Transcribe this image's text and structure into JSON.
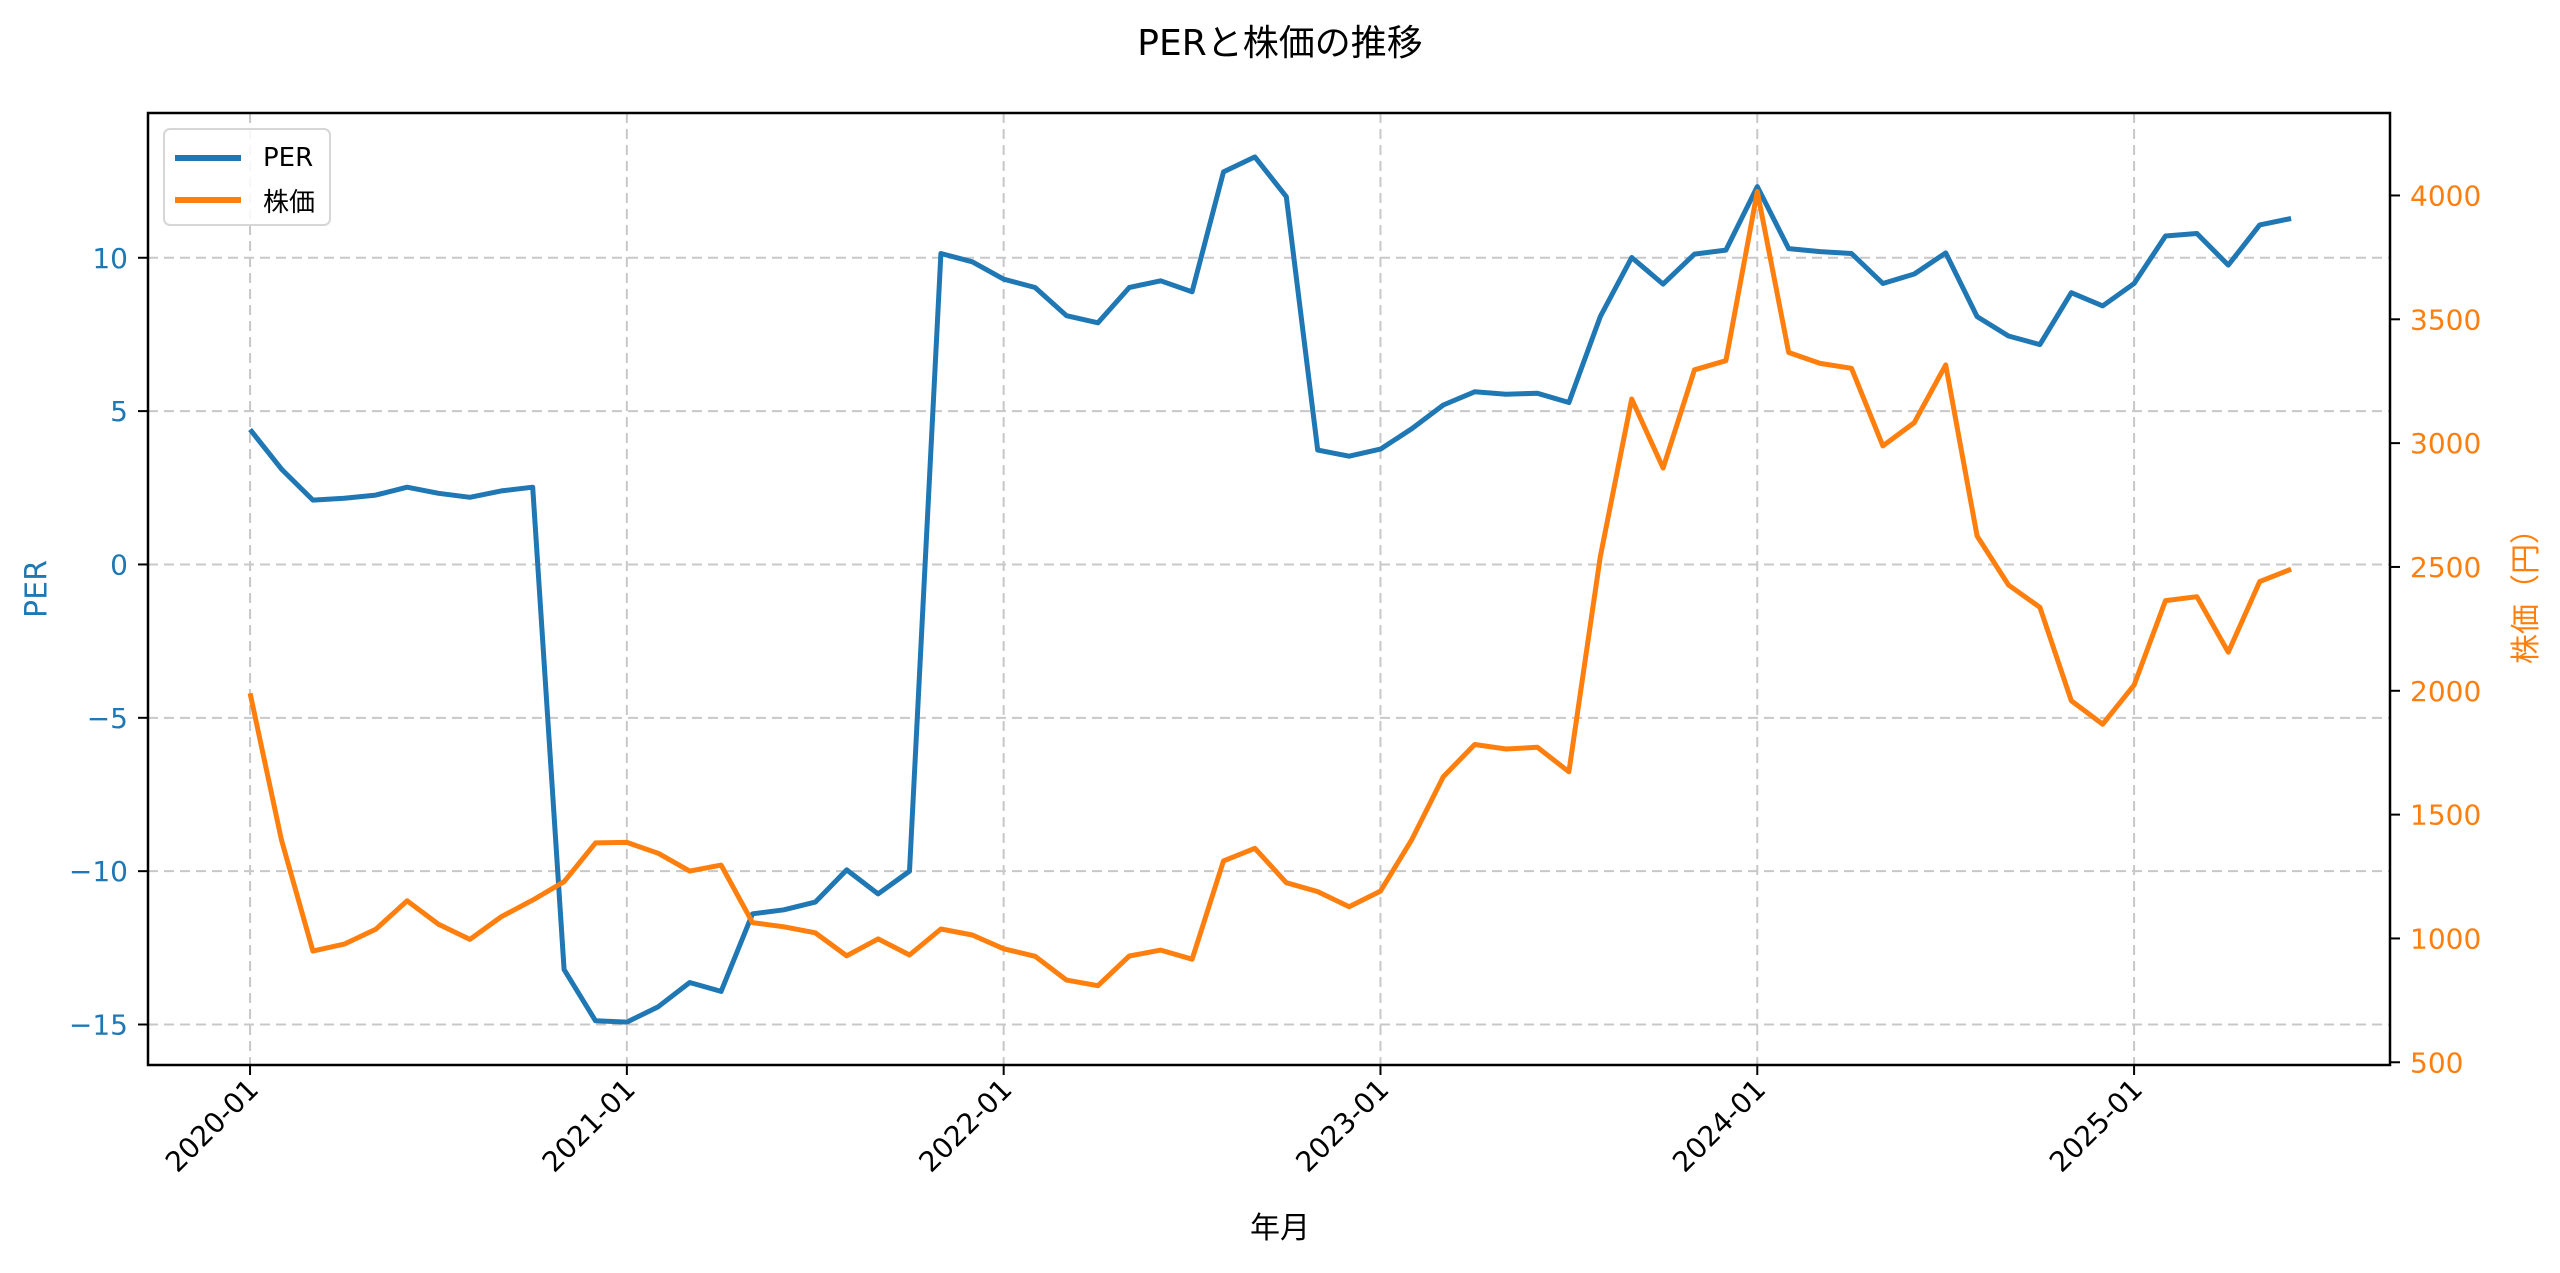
{
  "title": "PERと株価の推移",
  "xlabel": "年月",
  "ylabel_left": "PER",
  "ylabel_right": "株価（円）",
  "colors": {
    "per": "#1f77b4",
    "price": "#ff7f0e",
    "grid": "#c8c8c8",
    "axis": "#000000"
  },
  "legend": [
    {
      "label": "PER",
      "color": "#1f77b4"
    },
    {
      "label": "株価",
      "color": "#ff7f0e"
    }
  ],
  "chart_data": {
    "type": "line",
    "title": "PERと株価の推移",
    "xlabel": "年月",
    "ylabel": "PER",
    "ylabel_secondary": "株価（円）",
    "grid": true,
    "legend_position": "upper left",
    "x": [
      "2020-01",
      "2020-02",
      "2020-03",
      "2020-04",
      "2020-05",
      "2020-06",
      "2020-07",
      "2020-08",
      "2020-09",
      "2020-10",
      "2020-11",
      "2020-12",
      "2021-01",
      "2021-02",
      "2021-03",
      "2021-04",
      "2021-05",
      "2021-06",
      "2021-07",
      "2021-08",
      "2021-09",
      "2021-10",
      "2021-11",
      "2021-12",
      "2022-01",
      "2022-02",
      "2022-03",
      "2022-04",
      "2022-05",
      "2022-06",
      "2022-07",
      "2022-08",
      "2022-09",
      "2022-10",
      "2022-11",
      "2022-12",
      "2023-01",
      "2023-02",
      "2023-03",
      "2023-04",
      "2023-05",
      "2023-06",
      "2023-07",
      "2023-08",
      "2023-09",
      "2023-10",
      "2023-11",
      "2023-12",
      "2024-01",
      "2024-02",
      "2024-03",
      "2024-04",
      "2024-05",
      "2024-06",
      "2024-07",
      "2024-08",
      "2024-09",
      "2024-10",
      "2024-11",
      "2024-12",
      "2025-01",
      "2025-02",
      "2025-03",
      "2025-04",
      "2025-05",
      "2025-06"
    ],
    "xticks": [
      "2020-01",
      "2021-01",
      "2022-01",
      "2023-01",
      "2024-01",
      "2025-01"
    ],
    "xlim_index": [
      -3.25,
      68.15
    ],
    "series": [
      {
        "name": "PER",
        "axis": "left",
        "color": "#1f77b4",
        "values": [
          4.4,
          3.11,
          2.1,
          2.16,
          2.26,
          2.52,
          2.32,
          2.19,
          2.4,
          2.52,
          -13.21,
          -14.88,
          -14.92,
          -14.42,
          -13.63,
          -13.92,
          -11.39,
          -11.26,
          -11.01,
          -9.96,
          -10.74,
          -10.0,
          10.14,
          9.87,
          9.3,
          9.03,
          8.11,
          7.88,
          9.03,
          9.25,
          8.89,
          12.8,
          13.29,
          11.99,
          3.73,
          3.53,
          3.76,
          4.43,
          5.2,
          5.63,
          5.55,
          5.58,
          5.28,
          8.08,
          10.01,
          9.14,
          10.12,
          10.25,
          12.32,
          10.3,
          10.2,
          10.14,
          9.16,
          9.47,
          10.16,
          8.08,
          7.45,
          7.17,
          8.86,
          8.43,
          9.16,
          10.71,
          10.79,
          9.76,
          11.07,
          11.28
        ]
      },
      {
        "name": "株価",
        "axis": "right",
        "color": "#ff7f0e",
        "values": [
          1990,
          1397,
          949,
          977,
          1037,
          1152,
          1057,
          996,
          1088,
          1155,
          1229,
          1386,
          1388,
          1344,
          1272,
          1296,
          1064,
          1047,
          1023,
          930,
          998,
          933,
          1038,
          1014,
          958,
          928,
          832,
          809,
          929,
          953,
          916,
          1313,
          1364,
          1225,
          1189,
          1128,
          1191,
          1400,
          1653,
          1783,
          1765,
          1772,
          1673,
          2542,
          3178,
          2899,
          3296,
          3333,
          4016,
          3366,
          3322,
          3302,
          2989,
          3083,
          3316,
          2625,
          2427,
          2337,
          1960,
          1865,
          2023,
          2364,
          2380,
          2156,
          2441,
          2491
        ]
      }
    ],
    "ylim": [
      -16.32,
      14.72
    ],
    "yticks": [
      -15,
      -10,
      -5,
      0,
      5,
      10
    ],
    "ylim_secondary": [
      489,
      4333
    ],
    "yticks_secondary": [
      500,
      1000,
      1500,
      2000,
      2500,
      3000,
      3500,
      4000
    ]
  }
}
